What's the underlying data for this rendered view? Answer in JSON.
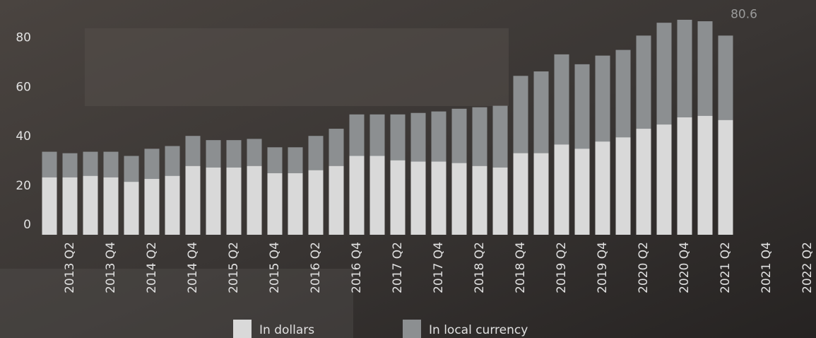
{
  "chart_data": {
    "type": "bar",
    "categories": [
      null,
      "2013 Q2",
      null,
      "2013 Q4",
      null,
      "2014 Q2",
      null,
      "2014 Q4",
      null,
      "2015 Q2",
      null,
      "2015 Q4",
      null,
      "2016 Q2",
      null,
      "2016 Q4",
      null,
      "2017 Q2",
      null,
      "2017 Q4",
      null,
      "2018 Q2",
      null,
      "2018 Q4",
      null,
      "2019 Q2",
      null,
      "2019 Q4",
      null,
      "2020 Q2",
      null,
      "2020 Q4",
      null,
      "2021 Q2",
      null,
      "2021 Q4",
      null,
      "2022 Q2"
    ],
    "series": [
      {
        "name": "In dollars",
        "color": "#d9d9d9",
        "values": [
          23.2,
          23.2,
          23.8,
          23.2,
          21.4,
          22.6,
          23.8,
          27.8,
          27.2,
          27.2,
          27.8,
          24.9,
          24.9,
          26.1,
          27.8,
          31.9,
          31.9,
          30.1,
          29.6,
          29.6,
          29.0,
          27.8,
          27.2,
          33.0,
          33.0,
          36.5,
          34.8,
          37.7,
          39.4,
          42.9,
          44.6,
          47.5,
          48.1,
          46.4,
          null,
          null,
          null,
          null
        ]
      },
      {
        "name": "In local currency",
        "color": "#8c8f91",
        "values": [
          33.6,
          33.0,
          33.6,
          33.6,
          31.9,
          34.8,
          35.9,
          40.0,
          38.3,
          38.3,
          38.8,
          35.4,
          35.4,
          40.0,
          42.9,
          48.7,
          48.7,
          48.7,
          49.3,
          49.9,
          51.0,
          51.6,
          52.2,
          64.3,
          66.1,
          73.0,
          69.0,
          72.5,
          74.8,
          80.6,
          85.8,
          87.0,
          86.4,
          80.6,
          null,
          null,
          null,
          null
        ]
      }
    ],
    "ylim": [
      0,
      95
    ],
    "yticks": [
      0,
      20,
      40,
      60,
      80
    ],
    "overlap": true
  }
}
